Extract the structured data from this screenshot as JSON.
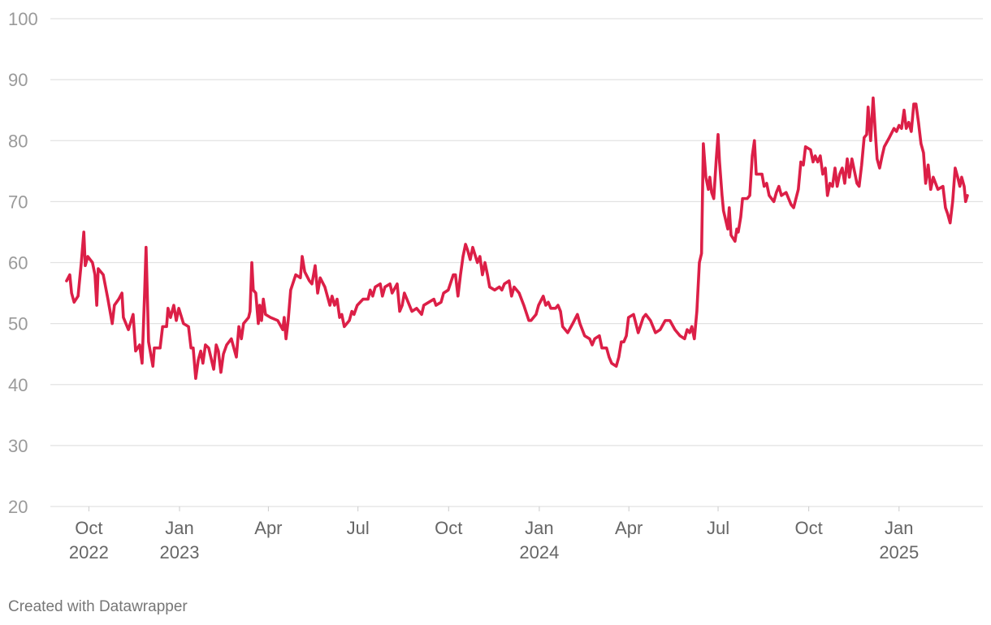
{
  "chart_data": {
    "type": "line",
    "color": "#dc1f47",
    "grid": true,
    "ylim": [
      20,
      100
    ],
    "yticks": [
      20,
      30,
      40,
      50,
      60,
      70,
      80,
      90,
      100
    ],
    "xlim": [
      2022.641,
      2025.233
    ],
    "xticks": [
      {
        "value": 2022.748,
        "label": "Oct",
        "year": "2022"
      },
      {
        "value": 2023.0,
        "label": "Jan",
        "year": "2023"
      },
      {
        "value": 2023.247,
        "label": "Apr"
      },
      {
        "value": 2023.496,
        "label": "Jul"
      },
      {
        "value": 2023.748,
        "label": "Oct"
      },
      {
        "value": 2024.0,
        "label": "Jan",
        "year": "2024"
      },
      {
        "value": 2024.249,
        "label": "Apr"
      },
      {
        "value": 2024.497,
        "label": "Jul"
      },
      {
        "value": 2024.749,
        "label": "Oct"
      },
      {
        "value": 2025.0,
        "label": "Jan",
        "year": "2025"
      }
    ],
    "x": [
      2022.686,
      2022.695,
      2022.7,
      2022.707,
      2022.718,
      2022.727,
      2022.734,
      2022.738,
      2022.745,
      2022.758,
      2022.765,
      2022.77,
      2022.774,
      2022.788,
      2022.801,
      2022.813,
      2022.819,
      2022.831,
      2022.84,
      2022.844,
      2022.858,
      2022.871,
      2022.878,
      2022.889,
      2022.896,
      2022.903,
      2022.907,
      2022.914,
      2022.926,
      2022.93,
      2022.946,
      2022.953,
      2022.964,
      2022.968,
      2022.975,
      2022.984,
      2022.991,
      2022.998,
      2023.011,
      2023.025,
      2023.032,
      2023.038,
      2023.045,
      2023.052,
      2023.059,
      2023.065,
      2023.072,
      2023.081,
      2023.095,
      2023.102,
      2023.108,
      2023.115,
      2023.122,
      2023.131,
      2023.144,
      2023.158,
      2023.165,
      2023.172,
      2023.178,
      2023.192,
      2023.196,
      2023.201,
      2023.205,
      2023.212,
      2023.219,
      2023.223,
      2023.228,
      2023.233,
      2023.239,
      2023.253,
      2023.273,
      2023.287,
      2023.291,
      2023.296,
      2023.302,
      2023.309,
      2023.323,
      2023.336,
      2023.341,
      2023.348,
      2023.361,
      2023.368,
      2023.377,
      2023.384,
      2023.391,
      2023.404,
      2023.418,
      2023.424,
      2023.431,
      2023.438,
      2023.445,
      2023.451,
      2023.458,
      2023.472,
      2023.479,
      2023.485,
      2023.494,
      2023.51,
      2023.524,
      2023.53,
      2023.537,
      2023.544,
      2023.558,
      2023.564,
      2023.571,
      2023.585,
      2023.591,
      2023.605,
      2023.612,
      2023.619,
      2023.625,
      2023.632,
      2023.646,
      2023.659,
      2023.673,
      2023.679,
      2023.693,
      2023.707,
      2023.713,
      2023.727,
      2023.734,
      2023.747,
      2023.761,
      2023.767,
      2023.774,
      2023.781,
      2023.788,
      2023.795,
      2023.801,
      2023.808,
      2023.815,
      2023.828,
      2023.835,
      2023.842,
      2023.849,
      2023.856,
      2023.862,
      2023.876,
      2023.889,
      2023.896,
      2023.903,
      2023.916,
      2023.923,
      2023.93,
      2023.944,
      2023.957,
      2023.971,
      2023.977,
      2023.991,
      2023.998,
      2024.011,
      2024.018,
      2024.025,
      2024.032,
      2024.045,
      2024.052,
      2024.059,
      2024.065,
      2024.079,
      2024.093,
      2024.106,
      2024.113,
      2024.126,
      2024.14,
      2024.147,
      2024.154,
      2024.167,
      2024.174,
      2024.187,
      2024.194,
      2024.201,
      2024.214,
      2024.221,
      2024.228,
      2024.235,
      2024.242,
      2024.248,
      2024.262,
      2024.275,
      2024.289,
      2024.296,
      2024.309,
      2024.323,
      2024.336,
      2024.35,
      2024.363,
      2024.377,
      2024.391,
      2024.404,
      2024.411,
      2024.418,
      2024.424,
      2024.431,
      2024.438,
      2024.445,
      2024.451,
      2024.456,
      2024.463,
      2024.47,
      2024.474,
      2024.479,
      2024.485,
      2024.492,
      2024.497,
      2024.501,
      2024.508,
      2024.512,
      2024.524,
      2024.528,
      2024.533,
      2024.544,
      2024.549,
      2024.553,
      2024.56,
      2024.565,
      2024.578,
      2024.585,
      2024.592,
      2024.598,
      2024.603,
      2024.619,
      2024.625,
      2024.632,
      2024.639,
      2024.652,
      2024.659,
      2024.666,
      2024.673,
      2024.686,
      2024.7,
      2024.707,
      2024.72,
      2024.727,
      2024.734,
      2024.74,
      2024.754,
      2024.761,
      2024.767,
      2024.774,
      2024.781,
      2024.788,
      2024.795,
      2024.801,
      2024.808,
      2024.815,
      2024.822,
      2024.828,
      2024.835,
      2024.842,
      2024.849,
      2024.856,
      2024.862,
      2024.869,
      2024.876,
      2024.883,
      2024.889,
      2024.896,
      2024.903,
      2024.91,
      2024.914,
      2024.921,
      2024.928,
      2024.935,
      2024.939,
      2024.946,
      2024.953,
      2024.959,
      2024.973,
      2024.986,
      2024.993,
      2025.0,
      2025.007,
      2025.014,
      2025.02,
      2025.027,
      2025.034,
      2025.041,
      2025.047,
      2025.054,
      2025.061,
      2025.068,
      2025.074,
      2025.081,
      2025.088,
      2025.095,
      2025.108,
      2025.122,
      2025.129,
      2025.135,
      2025.142,
      2025.149,
      2025.156,
      2025.163,
      2025.169,
      2025.174,
      2025.181,
      2025.185,
      2025.19
    ],
    "values": [
      57,
      58,
      55,
      53.5,
      54.5,
      60,
      65,
      59.5,
      61,
      60,
      58,
      53,
      59,
      58,
      54,
      50,
      53,
      54,
      55,
      51,
      49,
      51.5,
      45.5,
      46.5,
      43.5,
      55,
      62.5,
      47,
      43,
      46,
      46,
      49.5,
      49.5,
      52.5,
      51,
      53,
      50.5,
      52.5,
      50,
      49.5,
      46,
      46,
      41,
      44,
      45.5,
      43.5,
      46.5,
      46,
      42.5,
      46.5,
      45.5,
      42,
      45,
      46.5,
      47.5,
      44.5,
      49.5,
      47.5,
      50,
      51,
      52,
      60,
      55.5,
      55,
      50,
      53,
      50.5,
      54,
      51.5,
      51,
      50.5,
      49,
      51,
      47.5,
      50.5,
      55.5,
      58,
      57.5,
      61,
      58.5,
      57,
      56.5,
      59.5,
      55,
      57.5,
      56,
      53,
      54.5,
      53,
      54,
      51,
      51.5,
      49.5,
      50.5,
      52,
      51.5,
      53,
      54,
      54,
      55.5,
      54.5,
      56,
      56.5,
      54.5,
      56,
      56.5,
      55,
      56.5,
      52,
      53,
      55,
      54,
      52,
      52.5,
      51.5,
      53,
      53.5,
      54,
      53,
      53.5,
      55,
      55.5,
      58,
      58,
      54.5,
      58,
      61,
      63,
      62,
      60.5,
      62.5,
      60,
      61,
      58,
      60,
      58,
      56,
      55.5,
      56,
      55.5,
      56.5,
      57,
      54.5,
      56,
      55,
      53,
      50.5,
      50.5,
      51.5,
      53,
      54.5,
      53,
      53.5,
      52.5,
      52.5,
      53,
      52,
      49.5,
      48.5,
      50,
      51.5,
      50,
      48,
      47.5,
      46.5,
      47.5,
      48,
      46,
      46,
      44.5,
      43.5,
      43,
      44.5,
      47,
      47,
      48,
      51,
      51.5,
      48.5,
      51,
      51.5,
      50.5,
      48.5,
      49,
      50.5,
      50.5,
      49,
      48,
      47.5,
      49,
      48.5,
      49.5,
      47.5,
      52,
      60,
      61.5,
      79.5,
      74,
      72,
      74,
      71.5,
      70.5,
      77,
      81,
      76.5,
      71,
      68.5,
      65.5,
      69,
      64.5,
      63.5,
      65.5,
      65,
      67.5,
      70.5,
      70.5,
      71,
      77.5,
      80,
      74.5,
      74.5,
      72.5,
      73,
      71,
      70,
      71.5,
      72.5,
      71,
      71.5,
      69.5,
      69,
      72,
      76.5,
      76,
      79,
      78.5,
      76.5,
      77.5,
      76.5,
      77.5,
      74.5,
      75.5,
      71,
      73,
      72.5,
      75.5,
      72.5,
      74.5,
      75.5,
      73,
      77,
      74,
      77,
      75,
      73,
      72.5,
      76,
      80.5,
      81,
      85.5,
      80,
      87,
      80.5,
      77,
      75.5,
      77.5,
      79,
      80.5,
      82,
      81.5,
      82.5,
      82,
      85,
      82,
      83,
      81.5,
      86,
      86,
      83,
      79.5,
      78,
      73,
      76,
      72,
      74,
      72,
      72.5,
      69,
      68,
      66.5,
      70,
      75.5,
      74,
      72.5,
      74,
      72.5,
      70,
      71
    ],
    "credit": "Created with Datawrapper"
  }
}
